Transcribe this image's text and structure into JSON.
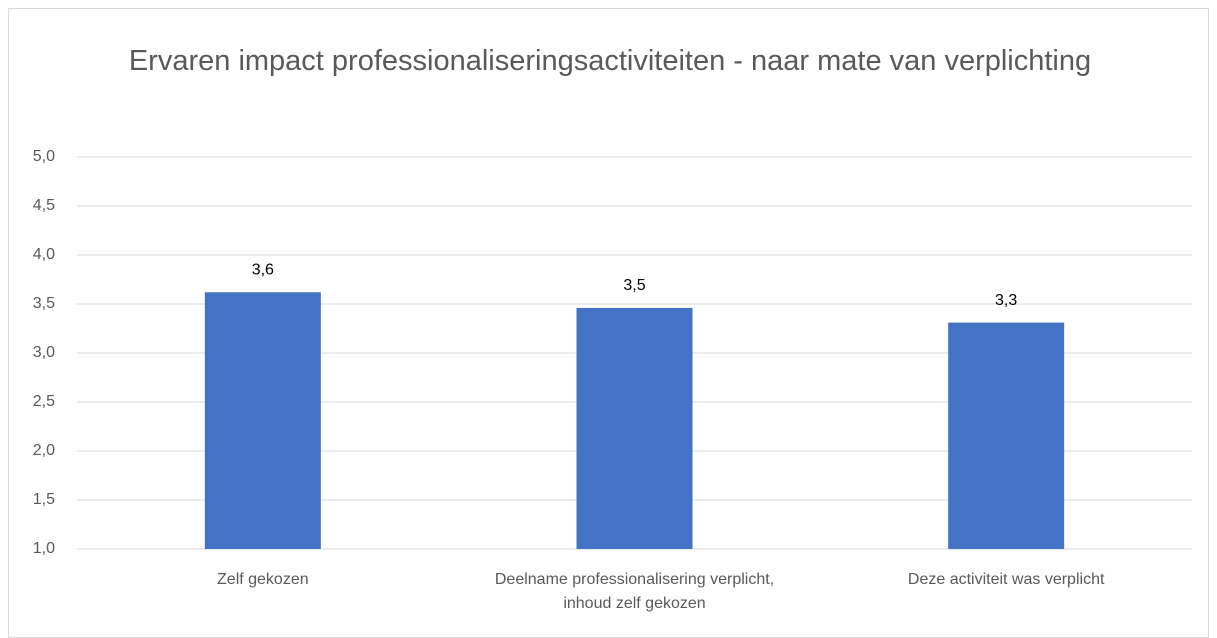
{
  "chart_data": {
    "type": "bar",
    "title": "Ervaren impact professionaliseringsactiviteiten - naar mate van verplichting",
    "categories": [
      "Zelf gekozen",
      "Deelname professionalisering verplicht, inhoud zelf gekozen",
      "Deze activiteit was verplicht"
    ],
    "values": [
      3.62,
      3.46,
      3.31
    ],
    "value_labels": [
      "3,6",
      "3,5",
      "3,3"
    ],
    "color": "#4472c4",
    "ylim": [
      1,
      5
    ],
    "yticks": [
      {
        "value": 1,
        "label": "1,0"
      },
      {
        "value": 1.5,
        "label": "1,5"
      },
      {
        "value": 2,
        "label": "2,0"
      },
      {
        "value": 2.5,
        "label": "2,5"
      },
      {
        "value": 3,
        "label": "3,0"
      },
      {
        "value": 3.5,
        "label": "3,5"
      },
      {
        "value": 4,
        "label": "4,0"
      },
      {
        "value": 4.5,
        "label": "4,5"
      },
      {
        "value": 5,
        "label": "5,0"
      }
    ],
    "grid": true
  }
}
